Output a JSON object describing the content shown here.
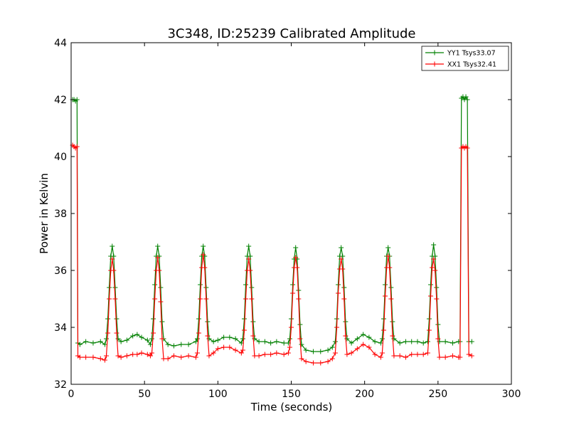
{
  "chart_data": {
    "type": "line",
    "title": "3C348, ID:25239 Calibrated Amplitude",
    "xlabel": "Time (seconds)",
    "ylabel": "Power in Kelvin",
    "xlim": [
      0,
      300
    ],
    "ylim": [
      32,
      44
    ],
    "xticks": [
      0,
      50,
      100,
      150,
      200,
      250,
      300
    ],
    "yticks": [
      32,
      34,
      36,
      38,
      40,
      42,
      44
    ],
    "grid": false,
    "legend_position": "top-right",
    "series": [
      {
        "name": "YY1 Tsys33.07",
        "color": "#008000",
        "marker": "+",
        "points": [
          [
            1,
            42.0
          ],
          [
            2,
            42.0
          ],
          [
            3,
            41.95
          ],
          [
            4,
            42.0
          ],
          [
            4.6,
            33.45
          ],
          [
            6,
            33.4
          ],
          [
            10,
            33.5
          ],
          [
            15,
            33.45
          ],
          [
            20,
            33.5
          ],
          [
            23,
            33.4
          ],
          [
            24,
            33.6
          ],
          [
            25,
            34.3
          ],
          [
            26,
            35.4
          ],
          [
            27,
            36.5
          ],
          [
            28,
            36.85
          ],
          [
            29,
            36.5
          ],
          [
            30,
            35.4
          ],
          [
            31,
            34.3
          ],
          [
            32,
            33.6
          ],
          [
            34,
            33.5
          ],
          [
            38,
            33.55
          ],
          [
            42,
            33.7
          ],
          [
            45,
            33.75
          ],
          [
            48,
            33.65
          ],
          [
            52,
            33.55
          ],
          [
            54,
            33.4
          ],
          [
            55,
            33.6
          ],
          [
            56,
            34.3
          ],
          [
            57,
            35.5
          ],
          [
            58,
            36.5
          ],
          [
            59,
            36.85
          ],
          [
            60,
            36.5
          ],
          [
            61,
            35.4
          ],
          [
            62,
            34.2
          ],
          [
            63,
            33.6
          ],
          [
            66,
            33.4
          ],
          [
            70,
            33.35
          ],
          [
            75,
            33.4
          ],
          [
            80,
            33.4
          ],
          [
            85,
            33.5
          ],
          [
            86,
            33.6
          ],
          [
            87,
            34.3
          ],
          [
            88,
            35.5
          ],
          [
            89,
            36.5
          ],
          [
            90,
            36.85
          ],
          [
            91,
            36.5
          ],
          [
            92,
            35.4
          ],
          [
            93,
            34.2
          ],
          [
            94,
            33.6
          ],
          [
            97,
            33.5
          ],
          [
            100,
            33.55
          ],
          [
            104,
            33.65
          ],
          [
            108,
            33.65
          ],
          [
            112,
            33.6
          ],
          [
            116,
            33.45
          ],
          [
            117,
            33.6
          ],
          [
            118,
            34.3
          ],
          [
            119,
            35.5
          ],
          [
            120,
            36.5
          ],
          [
            121,
            36.85
          ],
          [
            122,
            36.5
          ],
          [
            123,
            35.4
          ],
          [
            124,
            34.2
          ],
          [
            125,
            33.6
          ],
          [
            128,
            33.5
          ],
          [
            132,
            33.5
          ],
          [
            136,
            33.45
          ],
          [
            140,
            33.5
          ],
          [
            145,
            33.45
          ],
          [
            148,
            33.45
          ],
          [
            149,
            33.6
          ],
          [
            150,
            34.3
          ],
          [
            151,
            35.5
          ],
          [
            152,
            36.4
          ],
          [
            153,
            36.8
          ],
          [
            154,
            36.4
          ],
          [
            155,
            35.3
          ],
          [
            156,
            34.1
          ],
          [
            157,
            33.4
          ],
          [
            160,
            33.2
          ],
          [
            165,
            33.15
          ],
          [
            170,
            33.15
          ],
          [
            175,
            33.2
          ],
          [
            178,
            33.3
          ],
          [
            180,
            33.5
          ],
          [
            181,
            34.3
          ],
          [
            182,
            35.5
          ],
          [
            183,
            36.5
          ],
          [
            184,
            36.8
          ],
          [
            185,
            36.5
          ],
          [
            186,
            35.4
          ],
          [
            187,
            34.2
          ],
          [
            188,
            33.6
          ],
          [
            191,
            33.45
          ],
          [
            195,
            33.6
          ],
          [
            199,
            33.75
          ],
          [
            203,
            33.65
          ],
          [
            207,
            33.5
          ],
          [
            211,
            33.45
          ],
          [
            212,
            33.6
          ],
          [
            213,
            34.3
          ],
          [
            214,
            35.5
          ],
          [
            215,
            36.5
          ],
          [
            216,
            36.8
          ],
          [
            217,
            36.5
          ],
          [
            218,
            35.4
          ],
          [
            219,
            34.2
          ],
          [
            220,
            33.6
          ],
          [
            224,
            33.45
          ],
          [
            228,
            33.5
          ],
          [
            232,
            33.5
          ],
          [
            236,
            33.5
          ],
          [
            240,
            33.45
          ],
          [
            243,
            33.5
          ],
          [
            244,
            34.3
          ],
          [
            245,
            35.5
          ],
          [
            246,
            36.5
          ],
          [
            247,
            36.9
          ],
          [
            248,
            36.5
          ],
          [
            249,
            35.4
          ],
          [
            250,
            34.1
          ],
          [
            251,
            33.5
          ],
          [
            255,
            33.5
          ],
          [
            260,
            33.45
          ],
          [
            264,
            33.5
          ],
          [
            265,
            33.5
          ],
          [
            266,
            42.05
          ],
          [
            267,
            42.1
          ],
          [
            268,
            42.0
          ],
          [
            269,
            42.1
          ],
          [
            270,
            42.0
          ],
          [
            271,
            33.5
          ],
          [
            273,
            33.5
          ]
        ]
      },
      {
        "name": "XX1 Tsys32.41",
        "color": "#ff0000",
        "marker": "+",
        "points": [
          [
            1,
            40.4
          ],
          [
            2,
            40.35
          ],
          [
            3,
            40.3
          ],
          [
            4,
            40.35
          ],
          [
            4.6,
            33.0
          ],
          [
            6,
            32.95
          ],
          [
            10,
            32.95
          ],
          [
            15,
            32.95
          ],
          [
            20,
            32.9
          ],
          [
            23,
            32.85
          ],
          [
            24,
            33.0
          ],
          [
            25,
            33.8
          ],
          [
            26,
            35.0
          ],
          [
            27,
            36.0
          ],
          [
            28,
            36.4
          ],
          [
            29,
            36.0
          ],
          [
            30,
            35.0
          ],
          [
            31,
            33.8
          ],
          [
            32,
            33.0
          ],
          [
            34,
            32.95
          ],
          [
            38,
            33.0
          ],
          [
            42,
            33.05
          ],
          [
            45,
            33.05
          ],
          [
            48,
            33.1
          ],
          [
            52,
            33.05
          ],
          [
            54,
            33.0
          ],
          [
            55,
            33.1
          ],
          [
            56,
            33.8
          ],
          [
            57,
            35.0
          ],
          [
            58,
            36.0
          ],
          [
            59,
            36.45
          ],
          [
            60,
            36.0
          ],
          [
            61,
            34.9
          ],
          [
            62,
            33.6
          ],
          [
            63,
            32.9
          ],
          [
            66,
            32.9
          ],
          [
            70,
            33.0
          ],
          [
            75,
            32.95
          ],
          [
            80,
            33.0
          ],
          [
            85,
            32.95
          ],
          [
            86,
            33.1
          ],
          [
            87,
            33.8
          ],
          [
            88,
            35.0
          ],
          [
            89,
            36.1
          ],
          [
            90,
            36.55
          ],
          [
            91,
            36.1
          ],
          [
            92,
            35.0
          ],
          [
            93,
            33.7
          ],
          [
            94,
            33.0
          ],
          [
            97,
            33.1
          ],
          [
            100,
            33.25
          ],
          [
            104,
            33.3
          ],
          [
            108,
            33.3
          ],
          [
            112,
            33.2
          ],
          [
            116,
            33.1
          ],
          [
            117,
            33.2
          ],
          [
            118,
            33.9
          ],
          [
            119,
            35.0
          ],
          [
            120,
            36.0
          ],
          [
            121,
            36.4
          ],
          [
            122,
            36.0
          ],
          [
            123,
            35.0
          ],
          [
            124,
            33.7
          ],
          [
            125,
            33.0
          ],
          [
            128,
            33.0
          ],
          [
            132,
            33.05
          ],
          [
            136,
            33.05
          ],
          [
            140,
            33.1
          ],
          [
            145,
            33.05
          ],
          [
            148,
            33.1
          ],
          [
            149,
            33.3
          ],
          [
            150,
            34.0
          ],
          [
            151,
            35.2
          ],
          [
            152,
            36.1
          ],
          [
            153,
            36.45
          ],
          [
            154,
            36.1
          ],
          [
            155,
            35.0
          ],
          [
            156,
            33.6
          ],
          [
            157,
            32.9
          ],
          [
            160,
            32.8
          ],
          [
            165,
            32.75
          ],
          [
            170,
            32.75
          ],
          [
            175,
            32.8
          ],
          [
            178,
            32.9
          ],
          [
            180,
            33.1
          ],
          [
            181,
            34.0
          ],
          [
            182,
            35.2
          ],
          [
            183,
            36.05
          ],
          [
            184,
            36.4
          ],
          [
            185,
            36.05
          ],
          [
            186,
            35.0
          ],
          [
            187,
            33.7
          ],
          [
            188,
            33.05
          ],
          [
            191,
            33.1
          ],
          [
            195,
            33.25
          ],
          [
            199,
            33.4
          ],
          [
            203,
            33.3
          ],
          [
            207,
            33.05
          ],
          [
            211,
            32.95
          ],
          [
            212,
            33.1
          ],
          [
            213,
            33.9
          ],
          [
            214,
            35.1
          ],
          [
            215,
            36.1
          ],
          [
            216,
            36.5
          ],
          [
            217,
            36.1
          ],
          [
            218,
            35.0
          ],
          [
            219,
            33.7
          ],
          [
            220,
            33.0
          ],
          [
            224,
            33.0
          ],
          [
            228,
            32.95
          ],
          [
            232,
            33.05
          ],
          [
            236,
            33.05
          ],
          [
            240,
            33.05
          ],
          [
            243,
            33.1
          ],
          [
            244,
            33.9
          ],
          [
            245,
            35.1
          ],
          [
            246,
            36.1
          ],
          [
            247,
            36.4
          ],
          [
            248,
            36.0
          ],
          [
            249,
            35.0
          ],
          [
            250,
            33.6
          ],
          [
            251,
            32.95
          ],
          [
            255,
            32.95
          ],
          [
            260,
            33.0
          ],
          [
            264,
            32.95
          ],
          [
            265,
            32.95
          ],
          [
            266,
            40.3
          ],
          [
            267,
            40.35
          ],
          [
            268,
            40.3
          ],
          [
            269,
            40.35
          ],
          [
            270,
            40.3
          ],
          [
            271,
            33.05
          ],
          [
            273,
            33.0
          ]
        ]
      }
    ]
  }
}
